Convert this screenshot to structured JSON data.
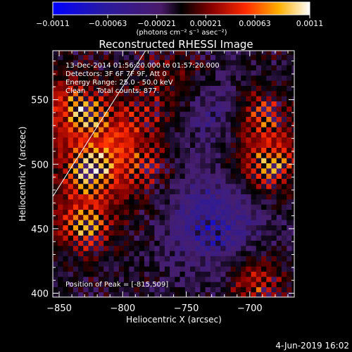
{
  "chart_data": {
    "type": "heatmap",
    "title": "Reconstructed RHESSI Image",
    "xlabel": "Heliocentric X (arcsec)",
    "ylabel": "Heliocentric Y (arcsec)",
    "xlim": [
      -855,
      -665
    ],
    "ylim": [
      397,
      588
    ],
    "x_ticks": [
      -850,
      -800,
      -750,
      -700
    ],
    "x_tick_labels": [
      "−850",
      "−800",
      "−750",
      "−700"
    ],
    "y_ticks": [
      400,
      450,
      500,
      550
    ],
    "y_tick_labels": [
      "400",
      "450",
      "500",
      "550"
    ],
    "colorbar": {
      "range": [
        -0.0011,
        0.0011
      ],
      "ticks": [
        -0.0011,
        -0.00063,
        -0.00021,
        0.00021,
        0.00063,
        0.0011
      ],
      "tick_labels": [
        "−0.0011",
        "−0.00063",
        "−0.00021",
        "0.00021",
        "0.00063",
        "0.0011"
      ],
      "unit_label": "(photons cm⁻² s⁻¹ asec⁻²)"
    },
    "annotations": [
      "13-Dec-2014 01:56:20.000 to 01:57:20.000",
      "Detectors: 3F 6F 7F 9F, Att 0",
      "Energy Range: 25.0 - 50.0 keV",
      "Clean     Total counts: 877."
    ],
    "peak_label": "Position of Peak = [-815,509]",
    "peak": [
      -815,
      509
    ],
    "limb_line": [
      [
        -855,
        475
      ],
      [
        -782,
        588
      ]
    ],
    "hot_regions": [
      {
        "x": -815,
        "y": 509,
        "sigma": 28,
        "amp": 1.0
      },
      {
        "x": -850,
        "y": 545,
        "sigma": 16,
        "amp": 0.65
      },
      {
        "x": -835,
        "y": 455,
        "sigma": 18,
        "amp": 0.7
      },
      {
        "x": -690,
        "y": 505,
        "sigma": 20,
        "amp": 0.85
      },
      {
        "x": -700,
        "y": 540,
        "sigma": 14,
        "amp": 0.55
      },
      {
        "x": -700,
        "y": 410,
        "sigma": 14,
        "amp": 0.7
      },
      {
        "x": -760,
        "y": 565,
        "sigma": 16,
        "amp": 0.35
      }
    ],
    "cold_regions": [
      {
        "x": -730,
        "y": 455,
        "sigma": 26,
        "amp": 0.75
      },
      {
        "x": -725,
        "y": 535,
        "sigma": 22,
        "amp": 0.45
      }
    ],
    "date_stamp": "4-Jun-2019 16:02"
  }
}
